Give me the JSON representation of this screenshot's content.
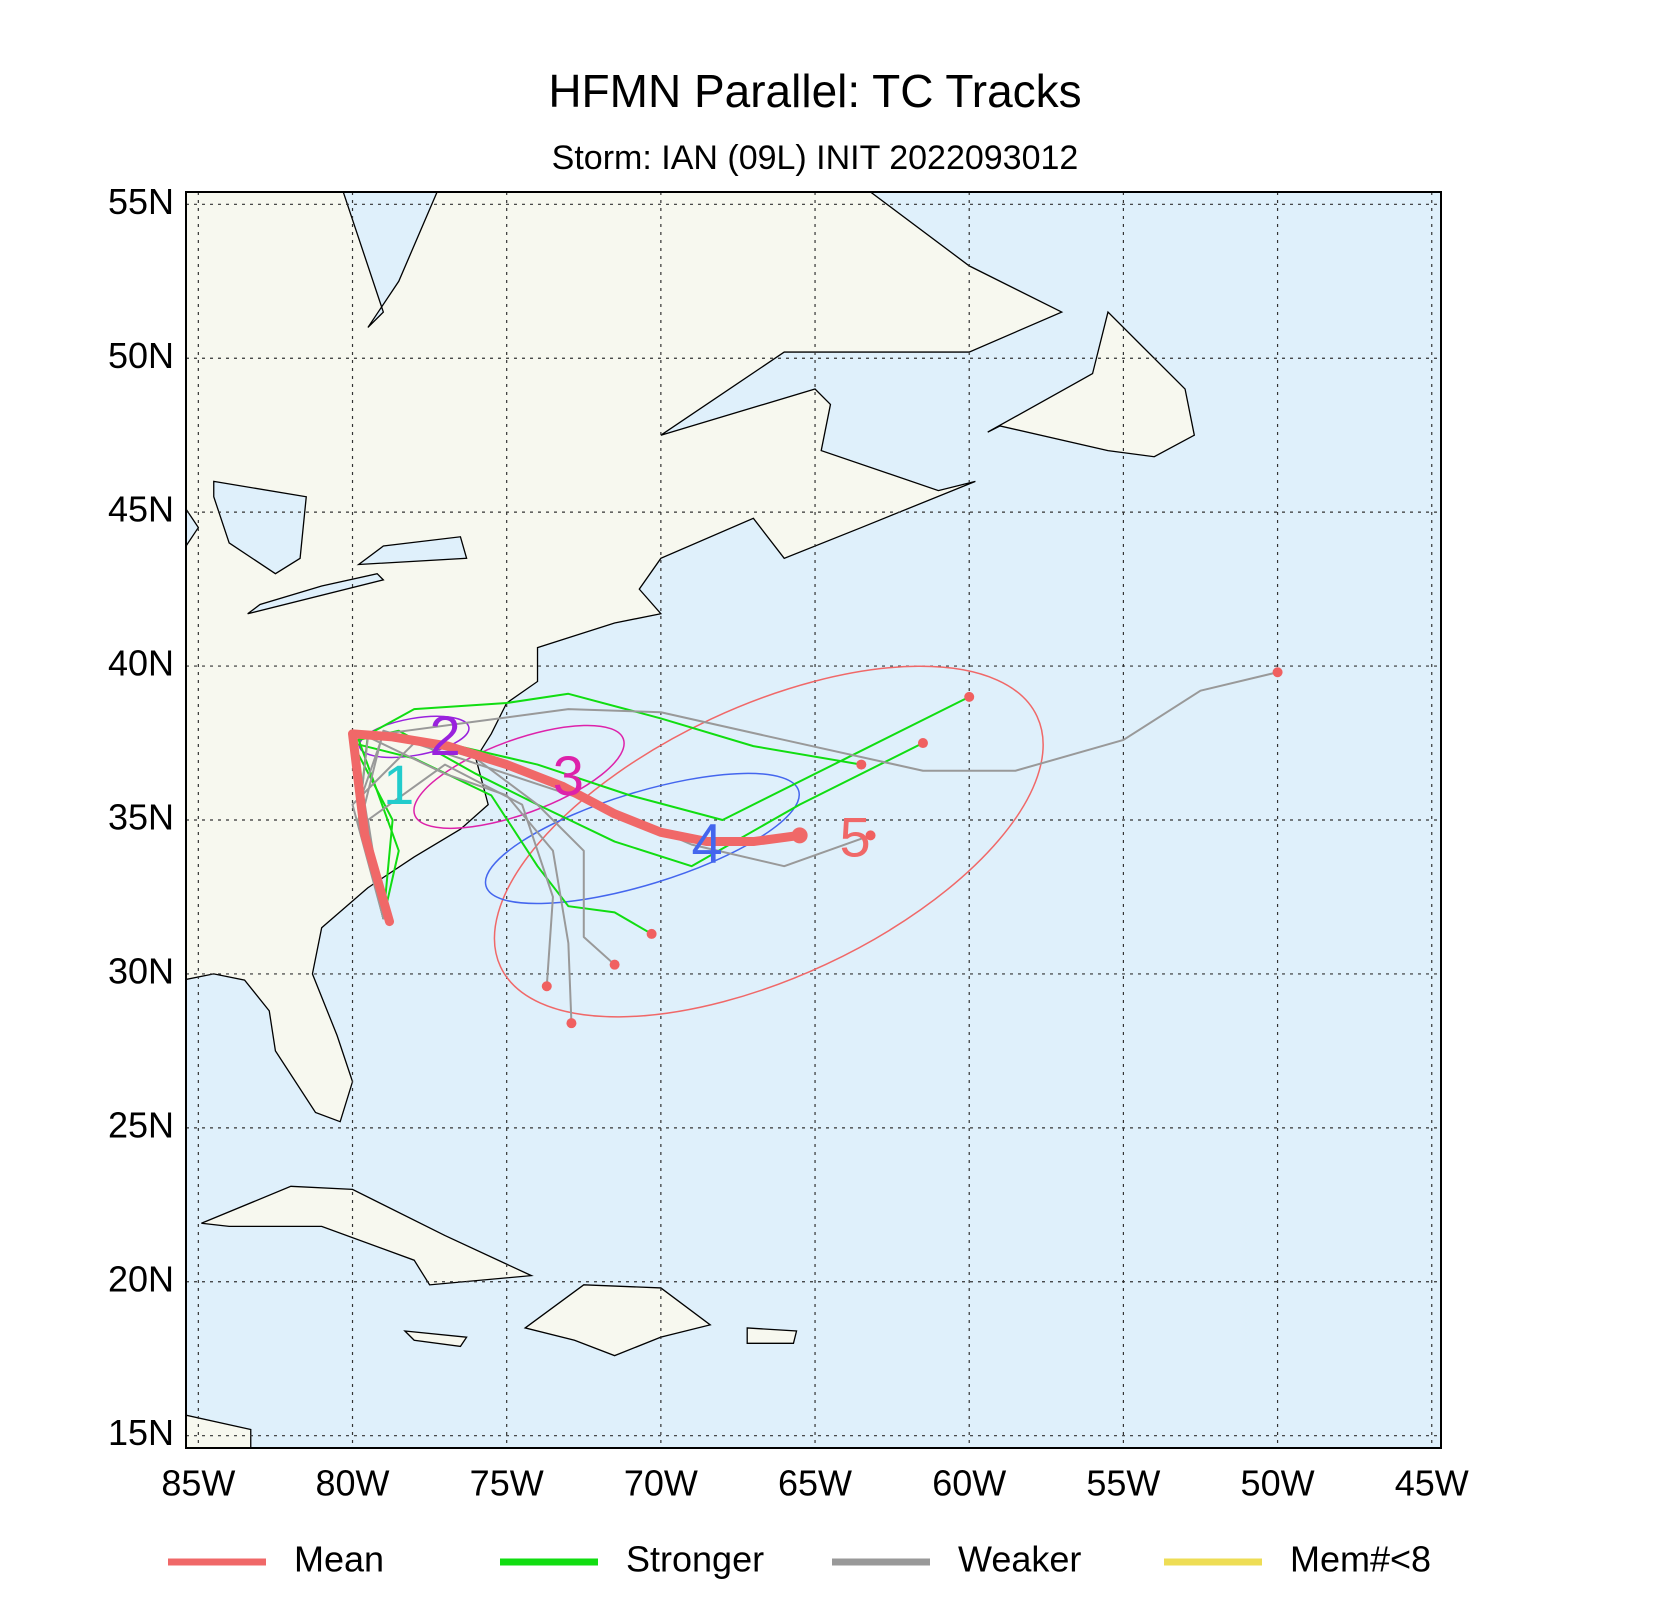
{
  "chart_data": {
    "type": "map",
    "title": "HFMN Parallel: TC Tracks",
    "subtitle": "Storm: IAN (09L) INIT 2022093012",
    "xlim": [
      -85.4,
      -44.7
    ],
    "ylim": [
      14.6,
      55.4
    ],
    "xticks": [
      {
        "value": -85,
        "label": "85W"
      },
      {
        "value": -80,
        "label": "80W"
      },
      {
        "value": -75,
        "label": "75W"
      },
      {
        "value": -70,
        "label": "70W"
      },
      {
        "value": -65,
        "label": "65W"
      },
      {
        "value": -60,
        "label": "60W"
      },
      {
        "value": -55,
        "label": "55W"
      },
      {
        "value": -50,
        "label": "50W"
      },
      {
        "value": -45,
        "label": "45W"
      }
    ],
    "yticks": [
      {
        "value": 15,
        "label": "15N"
      },
      {
        "value": 20,
        "label": "20N"
      },
      {
        "value": 25,
        "label": "25N"
      },
      {
        "value": 30,
        "label": "30N"
      },
      {
        "value": 35,
        "label": "35N"
      },
      {
        "value": 40,
        "label": "40N"
      },
      {
        "value": 45,
        "label": "45N"
      },
      {
        "value": 50,
        "label": "50N"
      },
      {
        "value": 55,
        "label": "55N"
      }
    ],
    "grid": true,
    "series": [
      {
        "name": "Mean",
        "color": "#f06868",
        "tracks": [
          {
            "lon": [
              -78.8,
              -79.6,
              -80,
              -78.7,
              -76.9,
              -75,
              -73.2,
              -71.5,
              -70,
              -68.5,
              -67,
              -65.5
            ],
            "lat": [
              31.7,
              34.5,
              37.8,
              37.7,
              37.4,
              36.8,
              36.1,
              35.2,
              34.6,
              34.3,
              34.3,
              34.5
            ]
          }
        ]
      },
      {
        "name": "Stronger",
        "color": "#11dd11",
        "tracks": [
          {
            "lon": [
              -79,
              -79.5,
              -80,
              -78,
              -75,
              -73,
              -70,
              -67,
              -63.5
            ],
            "lat": [
              31.8,
              34,
              37.5,
              38.6,
              38.8,
              39.1,
              38.3,
              37.4,
              36.8
            ]
          },
          {
            "lon": [
              -79,
              -79.8,
              -79.5,
              -77,
              -74,
              -71,
              -68,
              -64,
              -60
            ],
            "lat": [
              31.8,
              35,
              37.8,
              37.5,
              36.8,
              35.8,
              35,
              37,
              39
            ]
          },
          {
            "lon": [
              -79,
              -78.5,
              -79.8,
              -78.5,
              -76,
              -74,
              -71.5,
              -69,
              -65.5,
              -61.5
            ],
            "lat": [
              31.8,
              34,
              37.6,
              37.9,
              36.5,
              35.5,
              34.3,
              33.5,
              35.5,
              37.5
            ]
          },
          {
            "lon": [
              -79,
              -78.7,
              -80,
              -78,
              -75.5,
              -74,
              -73,
              -71.5,
              -70.3
            ],
            "lat": [
              31.8,
              35,
              37.5,
              37,
              35.8,
              33.5,
              32.2,
              32,
              31.3
            ]
          }
        ]
      },
      {
        "name": "Weaker",
        "color": "#999999",
        "tracks": [
          {
            "lon": [
              -79,
              -79.8,
              -79,
              -76,
              -73,
              -70,
              -66,
              -61.5,
              -58.5,
              -55,
              -52.5,
              -50
            ],
            "lat": [
              31.8,
              35.5,
              37.8,
              38.2,
              38.6,
              38.5,
              37.6,
              36.6,
              36.6,
              37.6,
              39.2,
              39.8
            ]
          },
          {
            "lon": [
              -79,
              -79.8,
              -79.5,
              -77,
              -75,
              -73.5,
              -73,
              -72.9
            ],
            "lat": [
              31.8,
              35,
              37.7,
              36.5,
              35.8,
              34,
              31,
              28.4
            ]
          },
          {
            "lon": [
              -79,
              -79.6,
              -79,
              -76,
              -74,
              -72.5,
              -72.5,
              -71.5
            ],
            "lat": [
              31.8,
              35.5,
              37.9,
              37,
              35.5,
              34,
              31.2,
              30.3
            ]
          },
          {
            "lon": [
              -79,
              -80,
              -78,
              -75,
              -72,
              -69,
              -66,
              -63.2
            ],
            "lat": [
              31.8,
              35.5,
              37.5,
              36.5,
              35.5,
              34.2,
              33.5,
              34.5
            ]
          },
          {
            "lon": [
              -79,
              -79.5,
              -77,
              -74.5,
              -73.5,
              -73.7
            ],
            "lat": [
              31.8,
              35,
              36.8,
              35.5,
              32.5,
              29.6
            ]
          }
        ]
      },
      {
        "name": "Mem#<8",
        "color": "#eedd55",
        "tracks": []
      }
    ],
    "ellipses": [
      {
        "lon": -66.5,
        "lat": 34.3,
        "rx": 9.6,
        "ry": 4.4,
        "angle": -25,
        "color": "#f06868"
      },
      {
        "lon": -70.6,
        "lat": 34.4,
        "rx": 5.3,
        "ry": 1.5,
        "angle": -17,
        "color": "#4466ee"
      },
      {
        "lon": -74.6,
        "lat": 36.4,
        "rx": 3.6,
        "ry": 1.2,
        "angle": -20,
        "color": "#dd22aa"
      },
      {
        "lon": -78,
        "lat": 37.7,
        "rx": 1.8,
        "ry": 0.6,
        "angle": -10,
        "color": "#9922dd"
      }
    ],
    "day_labels": [
      {
        "label": "1",
        "lon": -78.5,
        "lat": 36,
        "color": "#22cccc"
      },
      {
        "label": "2",
        "lon": -77,
        "lat": 37.6,
        "color": "#9922dd"
      },
      {
        "label": "3",
        "lon": -73,
        "lat": 36.3,
        "color": "#dd22aa"
      },
      {
        "label": "4",
        "lon": -68.5,
        "lat": 34.1,
        "color": "#4466ee"
      },
      {
        "label": "5",
        "lon": -63.7,
        "lat": 34.3,
        "color": "#f06868"
      }
    ]
  }
}
